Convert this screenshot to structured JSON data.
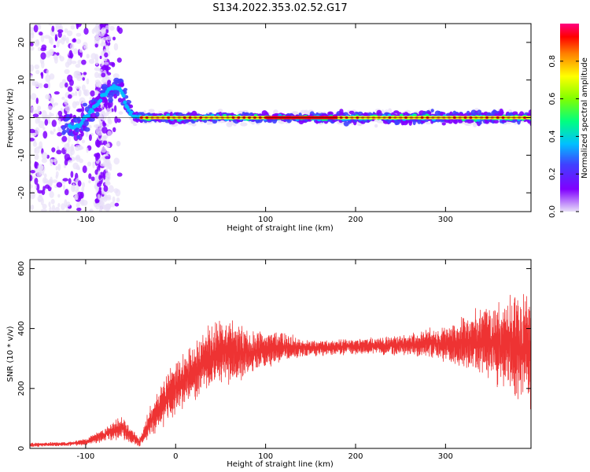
{
  "title": "S134.2022.353.02.52.G17",
  "chart_data": [
    {
      "type": "heatmap",
      "xlabel": "Height of straight line (km)",
      "ylabel": "Frequency (Hz)",
      "xlim": [
        -162,
        395
      ],
      "ylim": [
        -25,
        25
      ],
      "x_ticks": [
        "-100",
        "0",
        "100",
        "200",
        "300"
      ],
      "y_ticks": [
        "20",
        "10",
        "0",
        "-10",
        "-20"
      ],
      "colorbar": {
        "label": "Normalized spectral amplitude",
        "range": [
          0,
          1
        ],
        "ticks": [
          "0.0",
          "0.2",
          "0.4",
          "0.6",
          "0.8"
        ],
        "colormap": [
          "#e8e0f8",
          "#8000ff",
          "#4040ff",
          "#00c0ff",
          "#00ff80",
          "#80ff00",
          "#ffff00",
          "#ff8000",
          "#ff0000",
          "#ff0080"
        ]
      },
      "ridge": {
        "x": [
          -120,
          -110,
          -100,
          -90,
          -80,
          -70,
          -62,
          -55,
          -45,
          -30,
          0,
          50,
          100,
          200,
          300,
          395
        ],
        "y": [
          -2,
          -3,
          0,
          3,
          6,
          8,
          8,
          3,
          0,
          0,
          0,
          0,
          0,
          0,
          0,
          0
        ]
      }
    },
    {
      "type": "line",
      "xlabel": "Height of straight line (km)",
      "ylabel": "SNR (10 * v/v)",
      "xlim": [
        -162,
        395
      ],
      "ylim": [
        0,
        630
      ],
      "x_ticks": [
        "-100",
        "0",
        "100",
        "200",
        "300"
      ],
      "y_ticks": [
        "0",
        "200",
        "400",
        "600"
      ],
      "series": [
        {
          "color": "#ee3333",
          "x": [
            -162,
            -120,
            -100,
            -80,
            -60,
            -40,
            -30,
            -20,
            -10,
            0,
            20,
            40,
            60,
            80,
            100,
            120,
            150,
            200,
            250,
            300,
            340,
            380,
            395
          ],
          "y": [
            12,
            15,
            22,
            45,
            70,
            20,
            80,
            120,
            170,
            200,
            260,
            310,
            320,
            315,
            330,
            340,
            335,
            340,
            345,
            350,
            360,
            340,
            330
          ],
          "spread": [
            5,
            5,
            8,
            18,
            30,
            12,
            35,
            45,
            60,
            70,
            80,
            90,
            80,
            65,
            45,
            35,
            20,
            20,
            25,
            45,
            90,
            140,
            150
          ]
        }
      ]
    }
  ]
}
